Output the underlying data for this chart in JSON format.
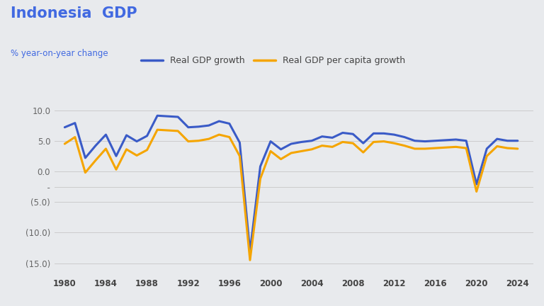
{
  "title": "Indonesia  GDP",
  "subtitle": "% year-on-year change",
  "title_color": "#4169e1",
  "subtitle_color": "#4169e1",
  "background_color": "#e8eaed",
  "plot_background": "#e8eaed",
  "years": [
    1980,
    1981,
    1982,
    1983,
    1984,
    1985,
    1986,
    1987,
    1988,
    1989,
    1990,
    1991,
    1992,
    1993,
    1994,
    1995,
    1996,
    1997,
    1998,
    1999,
    2000,
    2001,
    2002,
    2003,
    2004,
    2005,
    2006,
    2007,
    2008,
    2009,
    2010,
    2011,
    2012,
    2013,
    2014,
    2015,
    2016,
    2017,
    2018,
    2019,
    2020,
    2021,
    2022,
    2023,
    2024
  ],
  "real_gdp_growth": [
    7.2,
    7.9,
    2.2,
    4.2,
    6.0,
    2.5,
    5.9,
    4.9,
    5.8,
    9.1,
    9.0,
    8.9,
    7.2,
    7.3,
    7.5,
    8.2,
    7.8,
    4.7,
    -13.1,
    0.8,
    4.9,
    3.6,
    4.5,
    4.8,
    5.0,
    5.7,
    5.5,
    6.3,
    6.1,
    4.6,
    6.2,
    6.2,
    6.0,
    5.6,
    5.0,
    4.9,
    5.0,
    5.1,
    5.2,
    5.0,
    -2.1,
    3.7,
    5.3,
    5.0,
    5.0
  ],
  "real_gdp_per_capita_growth": [
    4.5,
    5.6,
    -0.2,
    1.8,
    3.7,
    0.3,
    3.6,
    2.6,
    3.5,
    6.8,
    6.7,
    6.6,
    4.9,
    5.0,
    5.3,
    6.0,
    5.6,
    2.5,
    -14.5,
    -1.2,
    3.3,
    2.0,
    3.0,
    3.3,
    3.6,
    4.2,
    4.0,
    4.8,
    4.6,
    3.1,
    4.8,
    4.9,
    4.6,
    4.2,
    3.7,
    3.7,
    3.8,
    3.9,
    4.0,
    3.8,
    -3.3,
    2.5,
    4.1,
    3.8,
    3.7
  ],
  "gdp_color": "#3a5bc7",
  "per_capita_color": "#f5a500",
  "line_width": 2.2,
  "ylim_min": -17,
  "ylim_max": 12,
  "ytick_vals": [
    10,
    5,
    0,
    -5,
    -10,
    -15
  ],
  "ytick_labels": [
    "10.0",
    "5.0",
    "0.0",
    "(5.0)",
    "(10.0)",
    "(15.0)"
  ],
  "xticks": [
    1980,
    1984,
    1988,
    1992,
    1996,
    2000,
    2004,
    2008,
    2012,
    2016,
    2020,
    2024
  ],
  "legend_gdp": "Real GDP growth",
  "legend_per_capita": "Real GDP per capita growth",
  "grid_color": "#cccccc",
  "tick_color": "#666666",
  "dash_tick_val": -2.5,
  "dash_tick_label": "  -"
}
